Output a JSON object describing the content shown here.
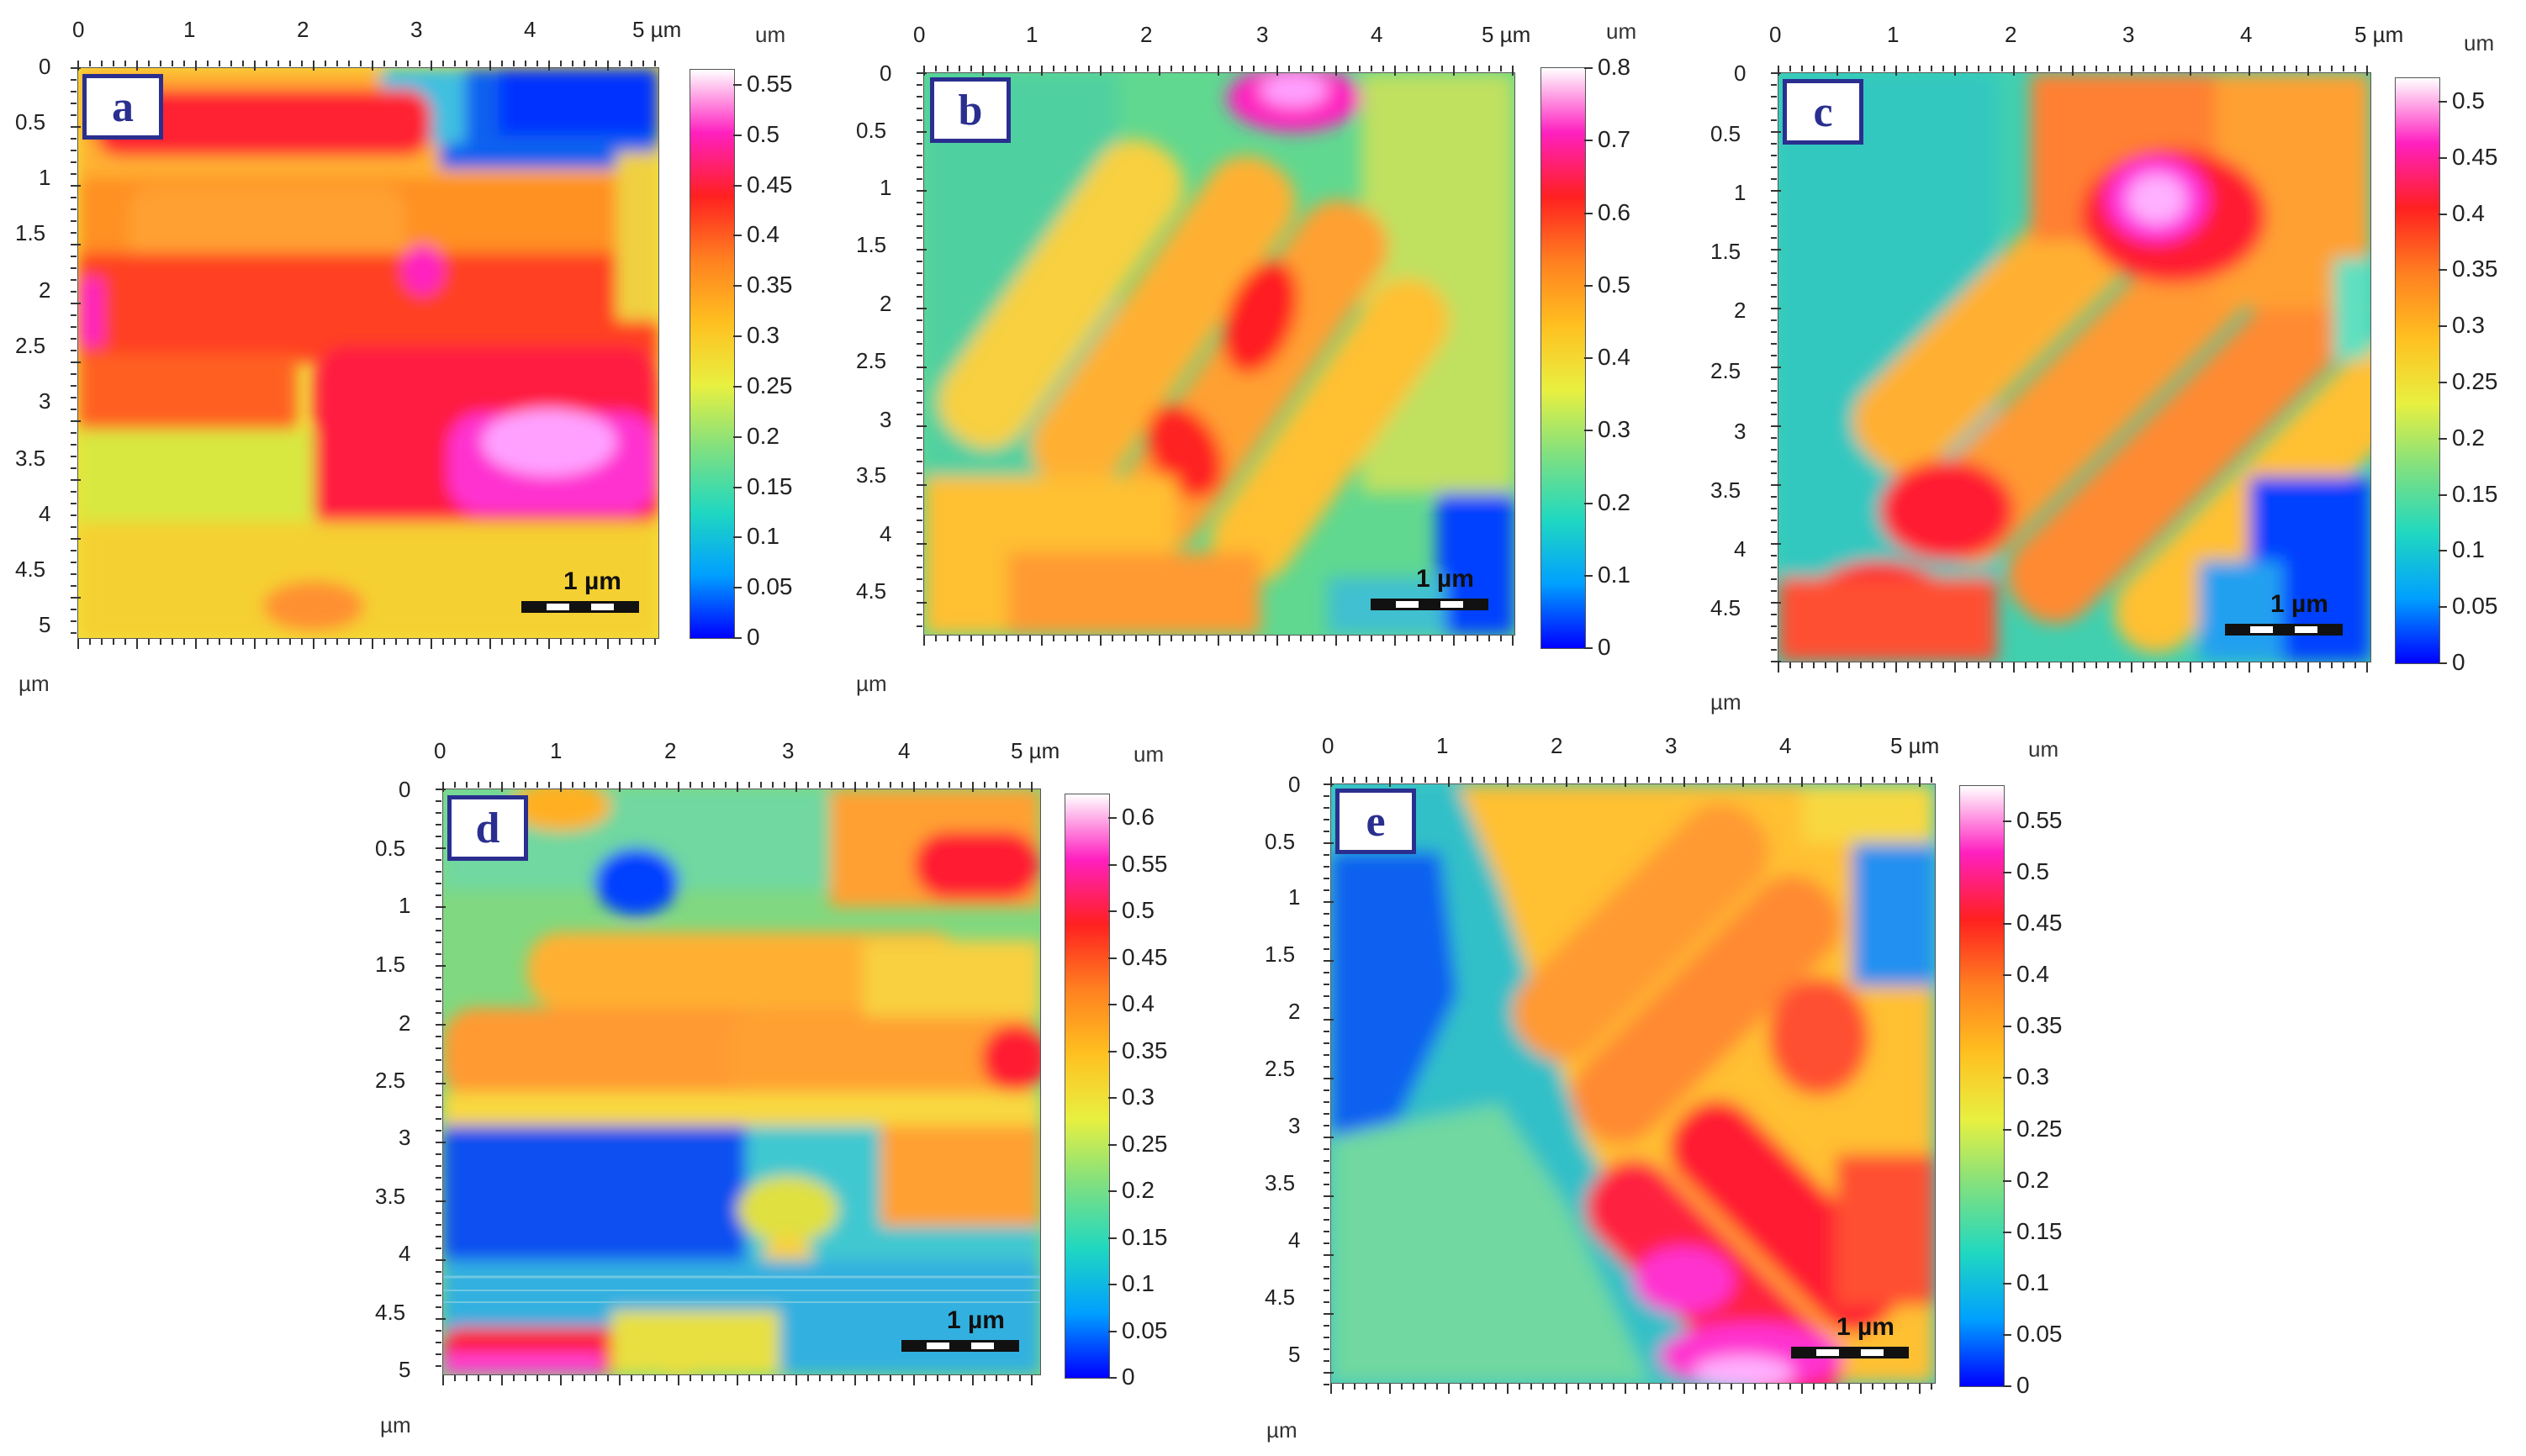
{
  "colorbar_gradient": [
    "#0000ff",
    "#00a0ff",
    "#20d8c0",
    "#80e080",
    "#e8f040",
    "#ffc020",
    "#ff8020",
    "#ff2020",
    "#ff20c0",
    "#ffffff"
  ],
  "panels": [
    {
      "label": "a",
      "x_ticks": [
        "0",
        "1",
        "2",
        "3",
        "4",
        "5 µm"
      ],
      "y_ticks": [
        "0",
        "0.5",
        "1",
        "1.5",
        "2",
        "2.5",
        "3",
        "3.5",
        "4",
        "4.5",
        "5"
      ],
      "axis_unit": "µm",
      "colorbar_unit": "um",
      "colorbar_ticks": [
        "0.55",
        "0.5",
        "0.45",
        "0.4",
        "0.35",
        "0.3",
        "0.25",
        "0.2",
        "0.15",
        "0.1",
        "0.05",
        "0"
      ],
      "scale_label": "1 µm"
    },
    {
      "label": "b",
      "x_ticks": [
        "0",
        "1",
        "2",
        "3",
        "4",
        "5 µm"
      ],
      "y_ticks": [
        "0",
        "0.5",
        "1",
        "1.5",
        "2",
        "2.5",
        "3",
        "3.5",
        "4",
        "4.5"
      ],
      "axis_unit": "µm",
      "colorbar_unit": "um",
      "colorbar_ticks": [
        "0.8",
        "0.7",
        "0.6",
        "0.5",
        "0.4",
        "0.3",
        "0.2",
        "0.1",
        "0"
      ],
      "scale_label": "1 µm"
    },
    {
      "label": "c",
      "x_ticks": [
        "0",
        "1",
        "2",
        "3",
        "4",
        "5 µm"
      ],
      "y_ticks": [
        "0",
        "0.5",
        "1",
        "1.5",
        "2",
        "2.5",
        "3",
        "3.5",
        "4",
        "4.5"
      ],
      "axis_unit": "µm",
      "colorbar_unit": "um",
      "colorbar_ticks": [
        "0.5",
        "0.45",
        "0.4",
        "0.35",
        "0.3",
        "0.25",
        "0.2",
        "0.15",
        "0.1",
        "0.05",
        "0"
      ],
      "scale_label": "1 µm"
    },
    {
      "label": "d",
      "x_ticks": [
        "0",
        "1",
        "2",
        "3",
        "4",
        "5 µm"
      ],
      "y_ticks": [
        "0",
        "0.5",
        "1",
        "1.5",
        "2",
        "2.5",
        "3",
        "3.5",
        "4",
        "4.5",
        "5"
      ],
      "axis_unit": "µm",
      "colorbar_unit": "um",
      "colorbar_ticks": [
        "0.6",
        "0.55",
        "0.5",
        "0.45",
        "0.4",
        "0.35",
        "0.3",
        "0.25",
        "0.2",
        "0.15",
        "0.1",
        "0.05",
        "0"
      ],
      "scale_label": "1 µm"
    },
    {
      "label": "e",
      "x_ticks": [
        "0",
        "1",
        "2",
        "3",
        "4",
        "5 µm"
      ],
      "y_ticks": [
        "0",
        "0.5",
        "1",
        "1.5",
        "2",
        "2.5",
        "3",
        "3.5",
        "4",
        "4.5",
        "5"
      ],
      "axis_unit": "µm",
      "colorbar_unit": "um",
      "colorbar_ticks": [
        "0.55",
        "0.5",
        "0.45",
        "0.4",
        "0.35",
        "0.3",
        "0.25",
        "0.2",
        "0.15",
        "0.1",
        "0.05",
        "0"
      ],
      "scale_label": "1 µm"
    }
  ]
}
